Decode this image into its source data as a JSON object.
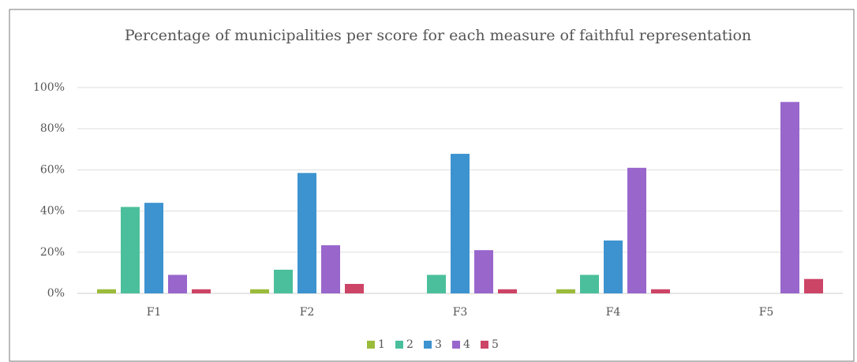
{
  "chart_data": {
    "type": "bar",
    "title": "Percentage of municipalities per score for each measure of faithful representation",
    "categories": [
      "F1",
      "F2",
      "F3",
      "F4",
      "F5"
    ],
    "series": [
      {
        "name": "1",
        "color": "#9bbb3b",
        "values": [
          2,
          2,
          0,
          2,
          0
        ]
      },
      {
        "name": "2",
        "color": "#4bbf9b",
        "values": [
          42,
          11.5,
          9,
          9,
          0
        ]
      },
      {
        "name": "3",
        "color": "#3d93d0",
        "values": [
          44,
          58.5,
          67.8,
          25.7,
          0
        ]
      },
      {
        "name": "4",
        "color": "#9966cc",
        "values": [
          9,
          23.4,
          21,
          61,
          93
        ]
      },
      {
        "name": "5",
        "color": "#cc4466",
        "values": [
          2,
          4.6,
          2,
          2,
          7
        ]
      }
    ],
    "ylim": [
      0,
      100
    ],
    "yticks": [
      {
        "value": 0,
        "label": "0%"
      },
      {
        "value": 20,
        "label": "20%"
      },
      {
        "value": 40,
        "label": "40%"
      },
      {
        "value": 60,
        "label": "60%"
      },
      {
        "value": 80,
        "label": "80%"
      },
      {
        "value": 100,
        "label": "100%"
      }
    ],
    "grid": true,
    "legend": "bottom"
  }
}
